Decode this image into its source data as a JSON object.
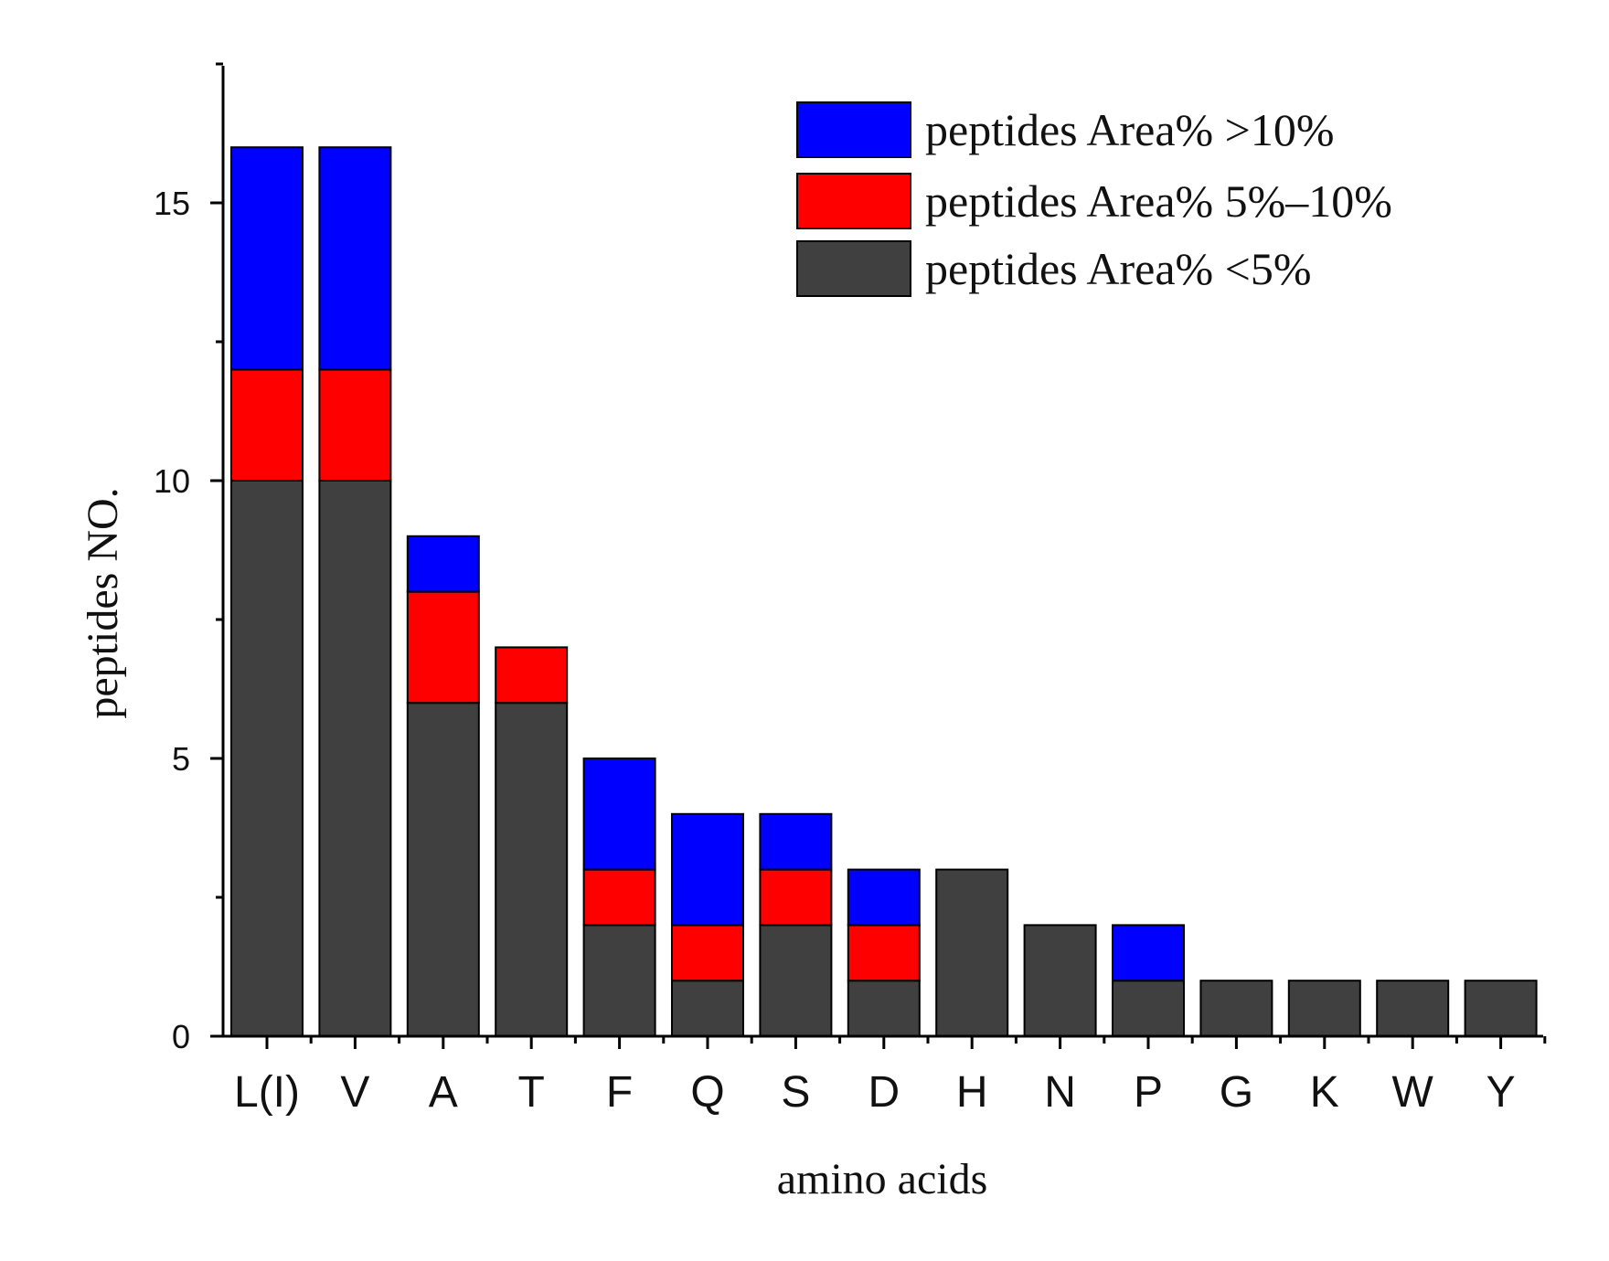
{
  "chart_data": {
    "type": "bar",
    "stacked": true,
    "title": "",
    "xlabel": "amino acids",
    "ylabel": "peptides NO.",
    "ylim": [
      0,
      17.5
    ],
    "yticks": [
      0,
      5,
      10,
      15
    ],
    "categories": [
      "L(I)",
      "V",
      "A",
      "T",
      "F",
      "Q",
      "S",
      "D",
      "H",
      "N",
      "P",
      "G",
      "K",
      "W",
      "Y"
    ],
    "series": [
      {
        "name": "peptides Area% <5%",
        "color": "#404040",
        "values": [
          10,
          10,
          6,
          6,
          2,
          1,
          2,
          1,
          3,
          2,
          1,
          1,
          1,
          1,
          1
        ]
      },
      {
        "name": "peptides Area% 5%–10%",
        "color": "#ff0000",
        "values": [
          2,
          2,
          2,
          1,
          1,
          1,
          1,
          1,
          0,
          0,
          0,
          0,
          0,
          0,
          0
        ]
      },
      {
        "name": "peptides Area% >10%",
        "color": "#0000ff",
        "values": [
          4,
          4,
          1,
          0,
          2,
          2,
          1,
          1,
          0,
          0,
          1,
          0,
          0,
          0,
          0
        ]
      }
    ],
    "legend": {
      "placement": "top-right",
      "order": [
        "peptides Area% >10%",
        "peptides Area% 5%–10%",
        "peptides Area% <5%"
      ]
    }
  }
}
